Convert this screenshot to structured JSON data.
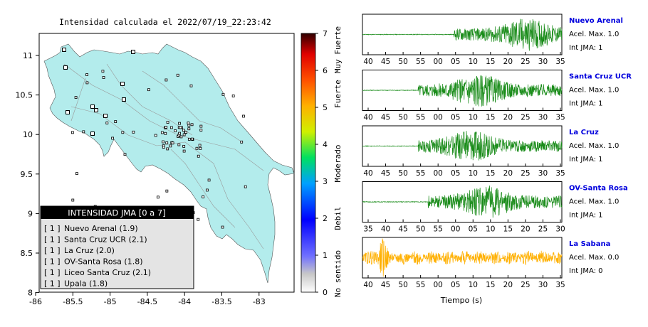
{
  "map": {
    "title": "Intensidad calculada el 2022/07/19_22:23:42",
    "x_ticks": [
      "-86",
      "-85.5",
      "-85",
      "-84.5",
      "-84",
      "-83.5",
      "-83"
    ],
    "y_ticks": [
      "11",
      "10.5",
      "10",
      "9.5",
      "9",
      "8.5",
      "8"
    ],
    "land_color": "#b3ecec",
    "legend": {
      "header": "INTENSIDAD JMA [0 a 7]",
      "items": [
        {
          "bracket": "[ 1 ]",
          "label": "Nuevo Arenal (1.9)"
        },
        {
          "bracket": "[ 1 ]",
          "label": "Santa Cruz UCR (2.1)"
        },
        {
          "bracket": "[ 1 ]",
          "label": "La Cruz (2.0)"
        },
        {
          "bracket": "[ 1 ]",
          "label": "OV-Santa Rosa (1.8)"
        },
        {
          "bracket": "[ 1 ]",
          "label": "Liceo Santa Cruz (2.1)"
        },
        {
          "bracket": "[ 1 ]",
          "label": "Upala (1.8)"
        }
      ]
    }
  },
  "colorbar": {
    "ticks": [
      "0",
      "1",
      "2",
      "3",
      "4",
      "5",
      "6",
      "7"
    ],
    "labels": [
      "No sentido",
      "Debil",
      "Moderado",
      "Fuerte",
      "Muy Fuerte"
    ]
  },
  "chart_data": {
    "type": "line",
    "xlabel": "Tiempo (s)",
    "traces": [
      {
        "station": "Nuevo Arenal",
        "acel_label": "Acel. Max. 1.0",
        "int_label": "Int JMA: 1",
        "color": "#1a8c1a",
        "ticks": [
          "40",
          "45",
          "50",
          "55",
          "00",
          "05",
          "10",
          "15",
          "20",
          "25",
          "30",
          "35"
        ],
        "onset": 0.46,
        "peak_at": 0.82,
        "amp": 0.95
      },
      {
        "station": "Santa Cruz UCR",
        "acel_label": "Acel. Max. 1.0",
        "int_label": "Int JMA: 1",
        "color": "#1a8c1a",
        "ticks": [
          "40",
          "45",
          "50",
          "55",
          "00",
          "05",
          "10",
          "15",
          "20",
          "25",
          "30",
          "35"
        ],
        "onset": 0.28,
        "peak_at": 0.58,
        "amp": 0.95
      },
      {
        "station": "La Cruz",
        "acel_label": "Acel. Max. 1.0",
        "int_label": "Int JMA: 1",
        "color": "#1a8c1a",
        "ticks": [
          "40",
          "45",
          "50",
          "55",
          "00",
          "05",
          "10",
          "15",
          "20",
          "25",
          "30",
          "35"
        ],
        "onset": 0.28,
        "peak_at": 0.54,
        "amp": 0.9
      },
      {
        "station": "OV-Santa Rosa",
        "acel_label": "Acel. Max. 1.0",
        "int_label": "Int JMA: 1",
        "color": "#1a8c1a",
        "ticks": [
          "35",
          "40",
          "45",
          "50",
          "55",
          "00",
          "05",
          "10",
          "15",
          "20",
          "25",
          "30"
        ],
        "onset": 0.33,
        "peak_at": 0.62,
        "amp": 0.95
      },
      {
        "station": "La Sabana",
        "acel_label": "Acel. Max. 0.0",
        "int_label": "Int JMA: 0",
        "color": "#ffb000",
        "ticks": [
          "40",
          "45",
          "50",
          "55",
          "00",
          "05",
          "10",
          "15",
          "20",
          "25",
          "30",
          "35"
        ],
        "onset": 0.0,
        "peak_at": 0.1,
        "amp": 0.9
      }
    ]
  }
}
